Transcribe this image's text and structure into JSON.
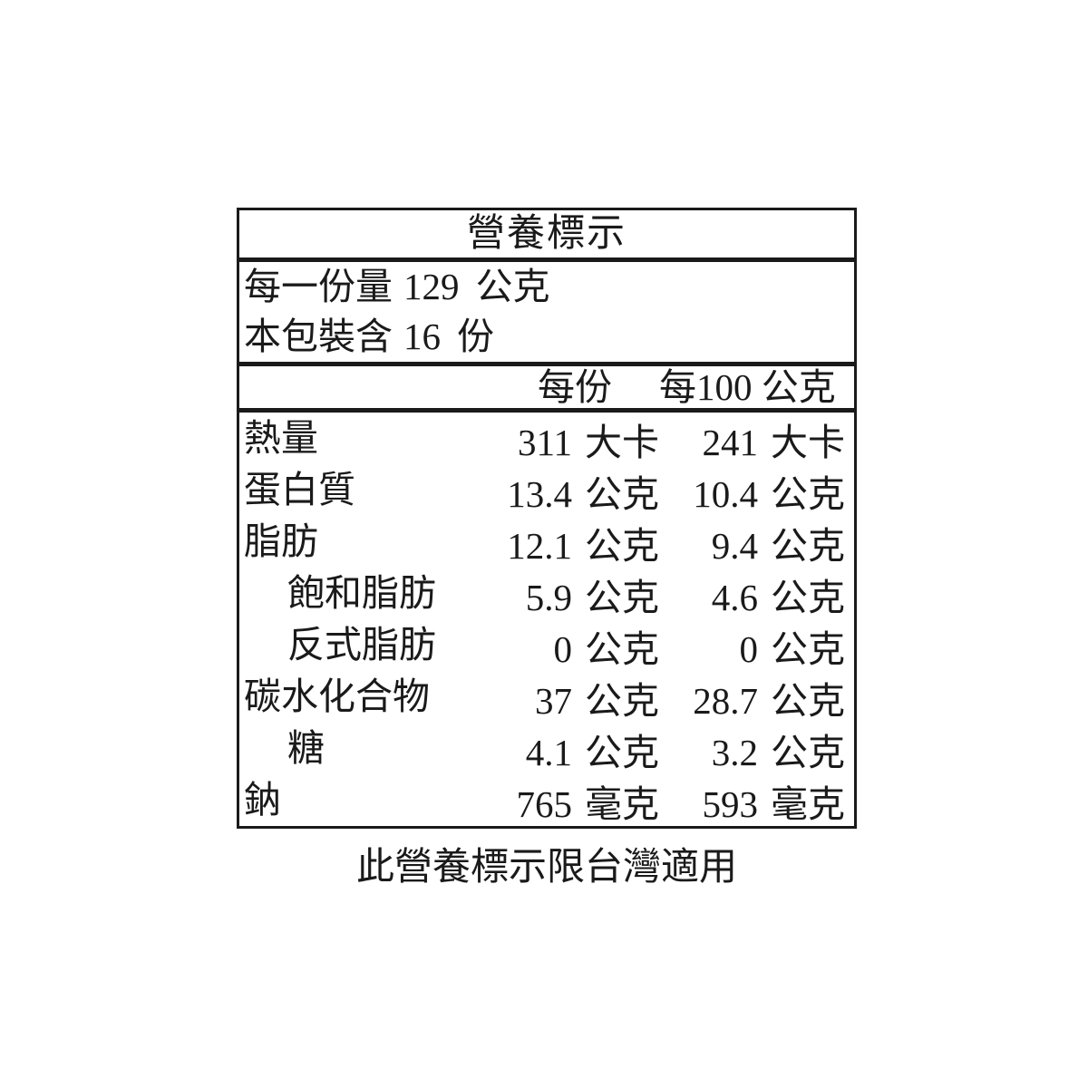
{
  "label": {
    "title": "營養標示",
    "serving_size": {
      "prefix": "每一份量",
      "value": "129",
      "unit": "公克"
    },
    "servings_per_package": {
      "prefix": "本包裝含",
      "value": "16",
      "unit": "份"
    },
    "columns": {
      "per_serving": "每份",
      "per_100g": "每100 公克"
    },
    "rows": [
      {
        "name": "熱量",
        "per_serving": {
          "value": "311",
          "unit": "大卡"
        },
        "per_100g": {
          "value": "241",
          "unit": "大卡"
        }
      },
      {
        "name": "蛋白質",
        "per_serving": {
          "value": "13.4",
          "unit": "公克"
        },
        "per_100g": {
          "value": "10.4",
          "unit": "公克"
        }
      },
      {
        "name": "脂肪",
        "per_serving": {
          "value": "12.1",
          "unit": "公克"
        },
        "per_100g": {
          "value": "9.4",
          "unit": "公克"
        }
      },
      {
        "name": "飽和脂肪",
        "per_serving": {
          "value": "5.9",
          "unit": "公克"
        },
        "per_100g": {
          "value": "4.6",
          "unit": "公克"
        }
      },
      {
        "name": "反式脂肪",
        "per_serving": {
          "value": "0",
          "unit": "公克"
        },
        "per_100g": {
          "value": "0",
          "unit": "公克"
        }
      },
      {
        "name": "碳水化合物",
        "per_serving": {
          "value": "37",
          "unit": "公克"
        },
        "per_100g": {
          "value": "28.7",
          "unit": "公克"
        }
      },
      {
        "name": "糖",
        "per_serving": {
          "value": "4.1",
          "unit": "公克"
        },
        "per_100g": {
          "value": "3.2",
          "unit": "公克"
        }
      },
      {
        "name": "鈉",
        "per_serving": {
          "value": "765",
          "unit": "毫克"
        },
        "per_100g": {
          "value": "593",
          "unit": "毫克"
        }
      }
    ],
    "footnote": "此營養標示限台灣適用",
    "colors": {
      "text": "#1a1a1a",
      "border": "#1a1a1a",
      "background": "#ffffff"
    }
  }
}
